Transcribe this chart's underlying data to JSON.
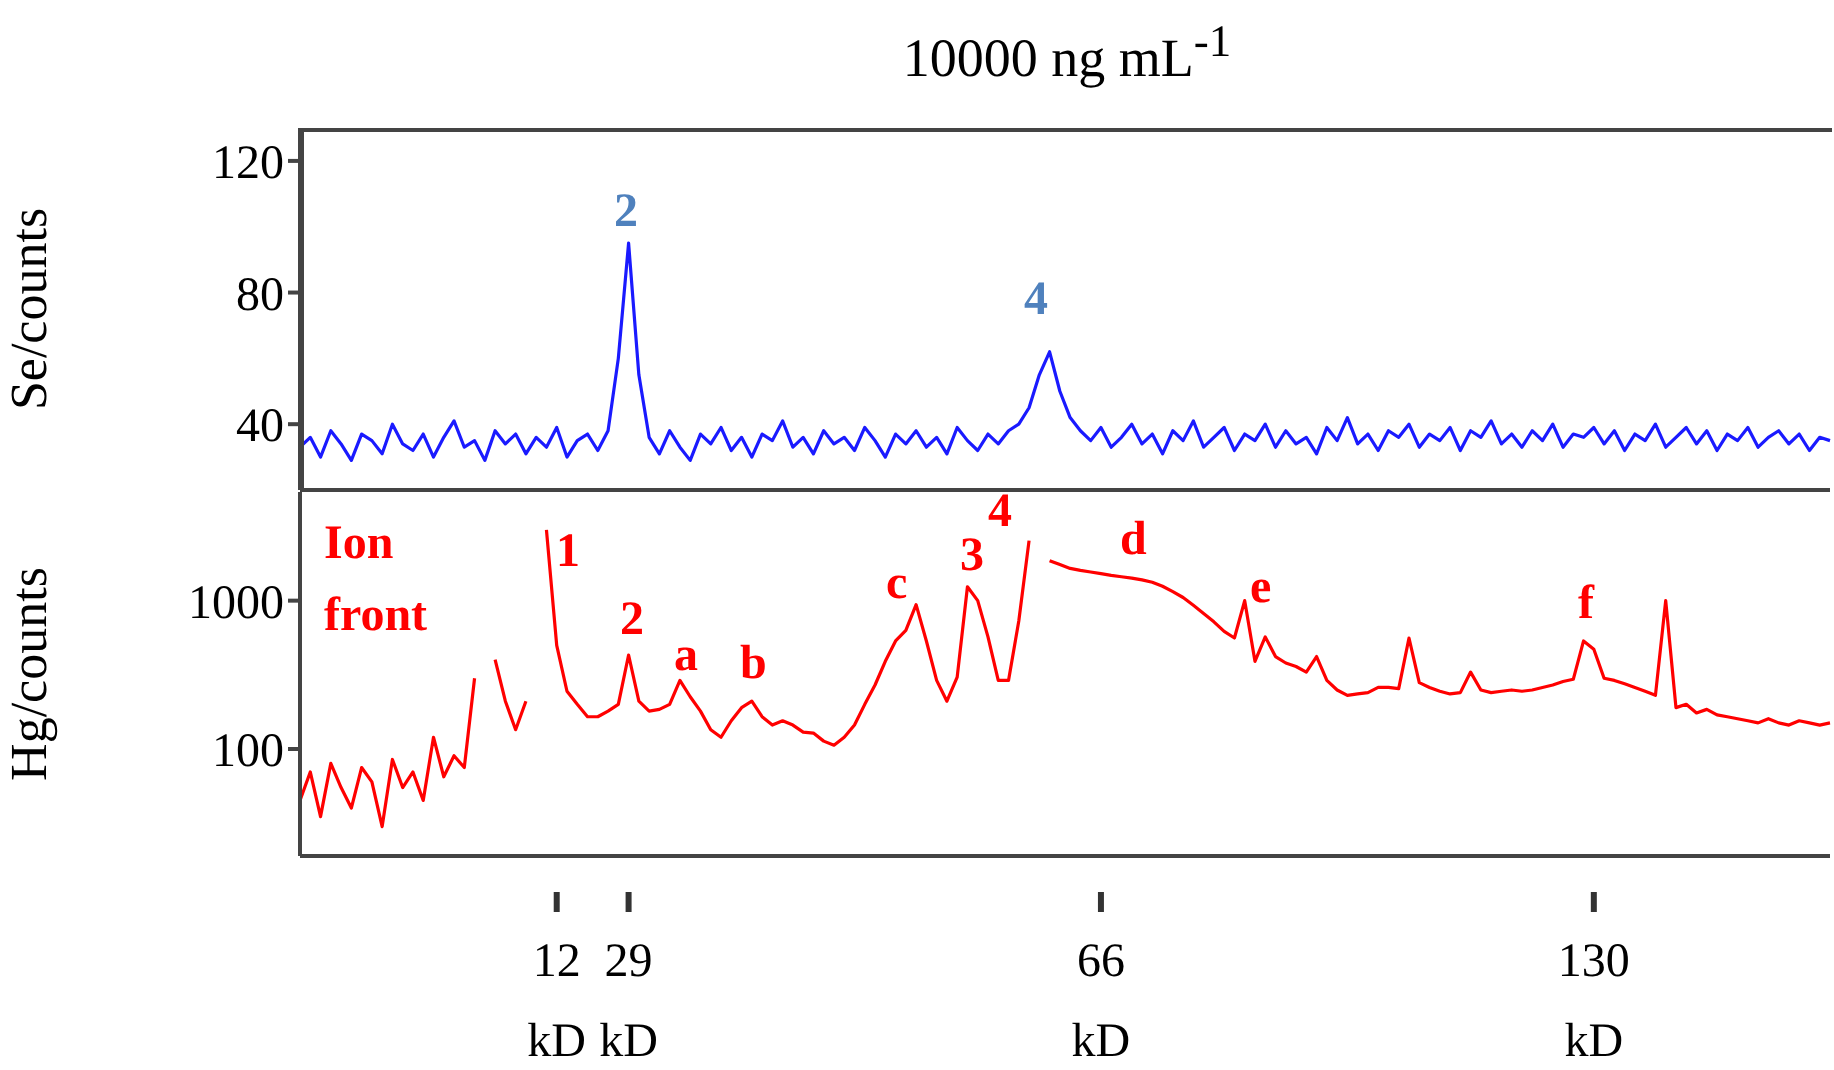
{
  "chart_data": [
    {
      "type": "line",
      "title": "10000 ng mL$^{-1}$",
      "ylabel": "Se/counts",
      "tick_labels": "y",
      "categories": [
        null,
        null,
        null,
        null,
        null,
        null,
        null,
        null,
        null,
        null,
        null,
        null,
        null,
        null,
        null,
        null,
        null,
        null,
        null,
        null,
        null,
        null,
        null,
        null,
        null,
        null,
        null,
        null,
        null,
        null,
        null,
        null,
        null,
        null,
        null,
        null,
        null,
        null,
        null,
        null,
        null,
        null,
        null,
        null,
        null,
        null,
        null,
        null,
        null,
        null,
        null,
        null,
        null,
        null,
        null,
        null,
        null,
        null,
        null,
        null,
        null,
        null,
        null,
        null,
        null,
        null,
        null,
        null,
        null,
        null,
        null,
        null,
        null,
        null,
        null,
        null,
        null,
        null,
        null,
        null,
        null,
        null,
        null,
        null,
        null,
        null,
        null,
        null,
        null,
        null,
        null,
        null,
        null,
        null,
        null,
        null,
        null,
        null,
        null,
        null,
        null,
        null,
        null,
        null,
        null,
        null,
        null,
        null,
        null,
        null,
        null,
        null,
        null,
        null,
        null,
        null,
        null,
        null,
        null,
        null,
        null,
        null,
        null,
        null,
        null,
        null,
        null,
        null,
        null,
        null,
        null,
        null,
        null,
        null,
        null,
        null,
        null,
        null,
        null,
        null,
        null,
        null,
        null,
        null,
        null,
        null,
        null,
        null,
        null,
        null
      ],
      "color": "#1a1aff",
      "values": [
        33,
        36,
        30,
        38,
        34,
        29,
        37,
        35,
        31,
        40,
        34,
        32,
        37,
        30,
        36,
        41,
        33,
        35,
        29,
        38,
        34,
        37,
        31,
        36,
        33,
        39,
        30,
        35,
        37,
        32,
        38,
        60,
        95,
        55,
        36,
        31,
        38,
        33,
        29,
        37,
        34,
        39,
        32,
        36,
        30,
        37,
        35,
        41,
        33,
        36,
        31,
        38,
        34,
        36,
        32,
        39,
        35,
        30,
        37,
        34,
        38,
        33,
        36,
        31,
        39,
        35,
        32,
        37,
        34,
        38,
        40,
        45,
        55,
        62,
        50,
        42,
        38,
        35,
        39,
        33,
        36,
        40,
        34,
        37,
        31,
        38,
        35,
        41,
        33,
        36,
        39,
        32,
        37,
        35,
        40,
        33,
        38,
        34,
        36,
        31,
        39,
        35,
        42,
        34,
        37,
        32,
        38,
        36,
        40,
        33,
        37,
        35,
        39,
        32,
        38,
        36,
        41,
        34,
        37,
        33,
        38,
        35,
        40,
        33,
        37,
        36,
        39,
        34,
        38,
        32,
        37,
        35,
        40,
        33,
        36,
        39,
        34,
        38,
        32,
        37,
        35,
        39,
        33,
        36,
        38,
        34,
        37,
        32,
        36,
        35
      ],
      "ylim": [
        20,
        130
      ],
      "yticks": [
        40,
        80,
        120
      ],
      "annotations": [
        "2",
        "4"
      ]
    },
    {
      "type": "line",
      "ylabel": "Hg/counts",
      "log": true,
      "categories": [
        null,
        null,
        null,
        null,
        null,
        null,
        null,
        null,
        null,
        null,
        null,
        null,
        null,
        null,
        null,
        null,
        null,
        null,
        null,
        null,
        null,
        null,
        null,
        null,
        null,
        "12 kD",
        null,
        null,
        null,
        null,
        null,
        null,
        "29 kD",
        null,
        null,
        null,
        null,
        null,
        null,
        null,
        null,
        null,
        null,
        null,
        null,
        null,
        null,
        null,
        null,
        null,
        null,
        null,
        null,
        null,
        null,
        null,
        null,
        null,
        null,
        null,
        null,
        null,
        null,
        null,
        null,
        null,
        null,
        null,
        null,
        null,
        null,
        null,
        null,
        null,
        null,
        null,
        null,
        null,
        "66 kD",
        null,
        null,
        null,
        null,
        null,
        null,
        null,
        null,
        null,
        null,
        null,
        null,
        null,
        null,
        null,
        null,
        null,
        null,
        null,
        null,
        null,
        null,
        null,
        null,
        null,
        null,
        null,
        null,
        null,
        null,
        null,
        null,
        null,
        null,
        null,
        null,
        null,
        null,
        null,
        null,
        null,
        null,
        null,
        null,
        null,
        null,
        null,
        "130 kD",
        null,
        null,
        null,
        null,
        null,
        null,
        null,
        null,
        null,
        null,
        null,
        null,
        null,
        null,
        null,
        null,
        null,
        null,
        null,
        null,
        null,
        null,
        null
      ],
      "color": "#ff0000",
      "values": [
        45,
        70,
        35,
        80,
        55,
        40,
        75,
        60,
        30,
        85,
        55,
        70,
        45,
        120,
        65,
        90,
        75,
        300,
        null,
        400,
        210,
        135,
        210,
        null,
        3000,
        500,
        245,
        200,
        165,
        165,
        180,
        200,
        430,
        210,
        180,
        185,
        200,
        290,
        225,
        180,
        135,
        120,
        155,
        190,
        210,
        165,
        145,
        155,
        145,
        130,
        128,
        113,
        106,
        120,
        145,
        200,
        270,
        390,
        535,
        630,
        940,
        535,
        290,
        210,
        305,
        1240,
        1000,
        570,
        290,
        290,
        730,
        2540,
        null,
        1860,
        1750,
        1650,
        1600,
        1560,
        1520,
        1480,
        1450,
        1420,
        1380,
        1330,
        1250,
        1150,
        1050,
        930,
        820,
        720,
        620,
        560,
        1000,
        390,
        570,
        420,
        380,
        360,
        330,
        420,
        290,
        250,
        230,
        235,
        240,
        260,
        260,
        255,
        560,
        280,
        260,
        245,
        235,
        240,
        330,
        250,
        240,
        245,
        250,
        245,
        250,
        260,
        270,
        285,
        295,
        535,
        470,
        300,
        290,
        275,
        260,
        245,
        230,
        1000,
        190,
        200,
        175,
        185,
        170,
        165,
        160,
        155,
        150,
        160,
        150,
        145,
        155,
        150,
        145,
        150
      ],
      "ylim": [
        19,
        5400
      ],
      "yticks": [
        100,
        1000
      ],
      "annotations": [
        "Ion front",
        "1",
        "2",
        "a",
        "b",
        "c",
        "3",
        "4",
        "d",
        "e",
        "f"
      ]
    }
  ]
}
